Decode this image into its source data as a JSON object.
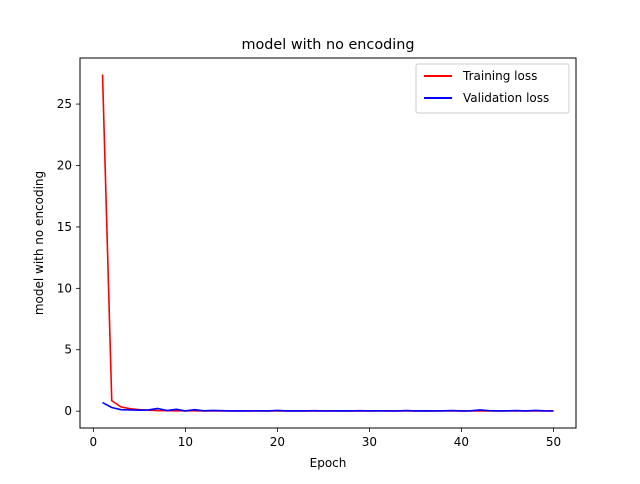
{
  "chart_data": {
    "type": "line",
    "title": "model with no encoding",
    "xlabel": "Epoch",
    "ylabel": "model with no encoding",
    "xlim": [
      -1.45,
      52.45
    ],
    "ylim": [
      -1.37,
      28.75
    ],
    "xticks": [
      0,
      10,
      20,
      30,
      40,
      50
    ],
    "yticks": [
      0,
      5,
      10,
      15,
      20,
      25
    ],
    "grid": false,
    "legend_position": "top-right",
    "x": [
      1,
      2,
      3,
      4,
      5,
      6,
      7,
      8,
      9,
      10,
      11,
      12,
      13,
      14,
      15,
      16,
      17,
      18,
      19,
      20,
      21,
      22,
      23,
      24,
      25,
      26,
      27,
      28,
      29,
      30,
      31,
      32,
      33,
      34,
      35,
      36,
      37,
      38,
      39,
      40,
      41,
      42,
      43,
      44,
      45,
      46,
      47,
      48,
      49,
      50
    ],
    "series": [
      {
        "name": "Training loss",
        "color": "#ff0000",
        "values": [
          27.4,
          0.85,
          0.35,
          0.2,
          0.12,
          0.08,
          0.05,
          0.04,
          0.03,
          0.03,
          0.03,
          0.02,
          0.02,
          0.02,
          0.02,
          0.02,
          0.02,
          0.02,
          0.02,
          0.02,
          0.02,
          0.02,
          0.02,
          0.02,
          0.02,
          0.02,
          0.02,
          0.02,
          0.02,
          0.02,
          0.02,
          0.02,
          0.02,
          0.02,
          0.02,
          0.02,
          0.02,
          0.02,
          0.02,
          0.02,
          0.02,
          0.02,
          0.02,
          0.02,
          0.02,
          0.02,
          0.02,
          0.02,
          0.02,
          0.02
        ]
      },
      {
        "name": "Validation loss",
        "color": "#0000ff",
        "values": [
          0.7,
          0.3,
          0.12,
          0.1,
          0.08,
          0.1,
          0.22,
          0.05,
          0.15,
          0.02,
          0.12,
          0.03,
          0.06,
          0.04,
          0.02,
          0.03,
          0.02,
          0.03,
          0.02,
          0.06,
          0.02,
          0.03,
          0.02,
          0.04,
          0.02,
          0.02,
          0.03,
          0.02,
          0.04,
          0.02,
          0.03,
          0.02,
          0.02,
          0.05,
          0.02,
          0.03,
          0.02,
          0.03,
          0.05,
          0.02,
          0.03,
          0.1,
          0.04,
          0.02,
          0.03,
          0.05,
          0.02,
          0.06,
          0.03,
          0.02
        ]
      }
    ]
  }
}
